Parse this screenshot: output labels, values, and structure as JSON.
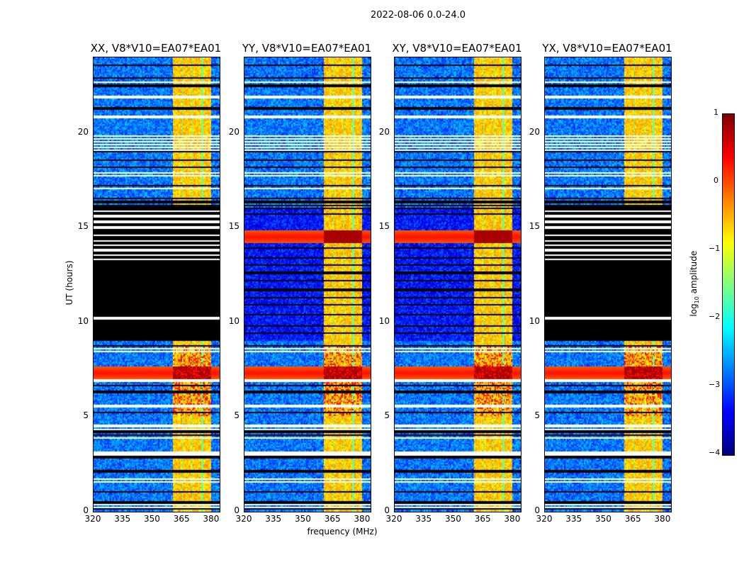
{
  "chart_data": {
    "type": "heatmap",
    "title": "2022-08-06 0.0-24.0",
    "xlabel": "frequency (MHz)",
    "ylabel": "UT (hours)",
    "xlim": [
      320,
      384
    ],
    "ylim": [
      0,
      24
    ],
    "xticks": [
      "320",
      "335",
      "350",
      "365",
      "380"
    ],
    "yticks": [
      "0",
      "5",
      "10",
      "15",
      "20"
    ],
    "colorbar": {
      "label_main": "log",
      "label_sub": "10",
      "label_rest": " amplitude",
      "range": [
        -4,
        1
      ],
      "ticks": [
        "1",
        "0",
        "−1",
        "−2",
        "−3",
        "−4"
      ],
      "colormap": "jet"
    },
    "panels": [
      {
        "title": "XX, V8*V10=EA07*EA01",
        "flagged_black_hours": [
          9.0,
          16.2
        ],
        "strong_bands_hours": [
          7.3
        ]
      },
      {
        "title": "YY, V8*V10=EA07*EA01",
        "flagged_black_hours": null,
        "strong_bands_hours": [
          7.3,
          14.5
        ]
      },
      {
        "title": "XY, V8*V10=EA07*EA01",
        "flagged_black_hours": null,
        "strong_bands_hours": [
          7.3,
          14.5
        ]
      },
      {
        "title": "YX, V8*V10=EA07*EA01",
        "flagged_black_hours": [
          9.0,
          16.2
        ],
        "strong_bands_hours": [
          7.3
        ]
      }
    ],
    "rfi_band_mhz": [
      360.5,
      380
    ],
    "background_log_amp": -2.8,
    "rfi_log_amp": -0.6
  }
}
